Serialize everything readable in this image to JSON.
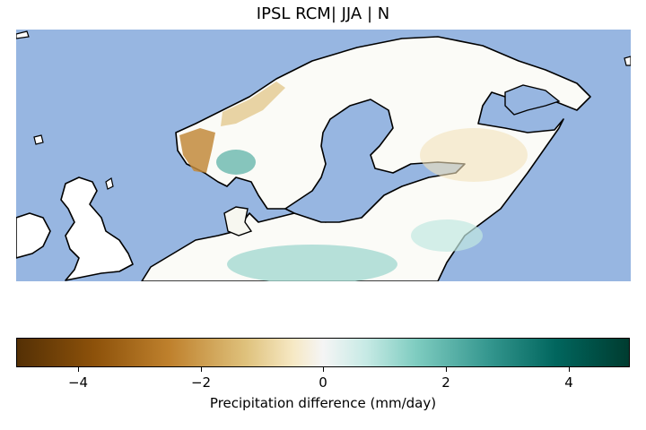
{
  "title": "IPSL RCM| JJA | N",
  "colorbar": {
    "label": "Precipitation difference (mm/day)",
    "ticks": [
      "−4",
      "−2",
      "0",
      "2",
      "4"
    ],
    "range": [
      -5,
      5
    ],
    "colormap": "BrBG"
  },
  "colors": {
    "ocean": "#97b6e1",
    "land": "#ffffff",
    "dry": "#bf812d",
    "wet": "#35978f"
  }
}
